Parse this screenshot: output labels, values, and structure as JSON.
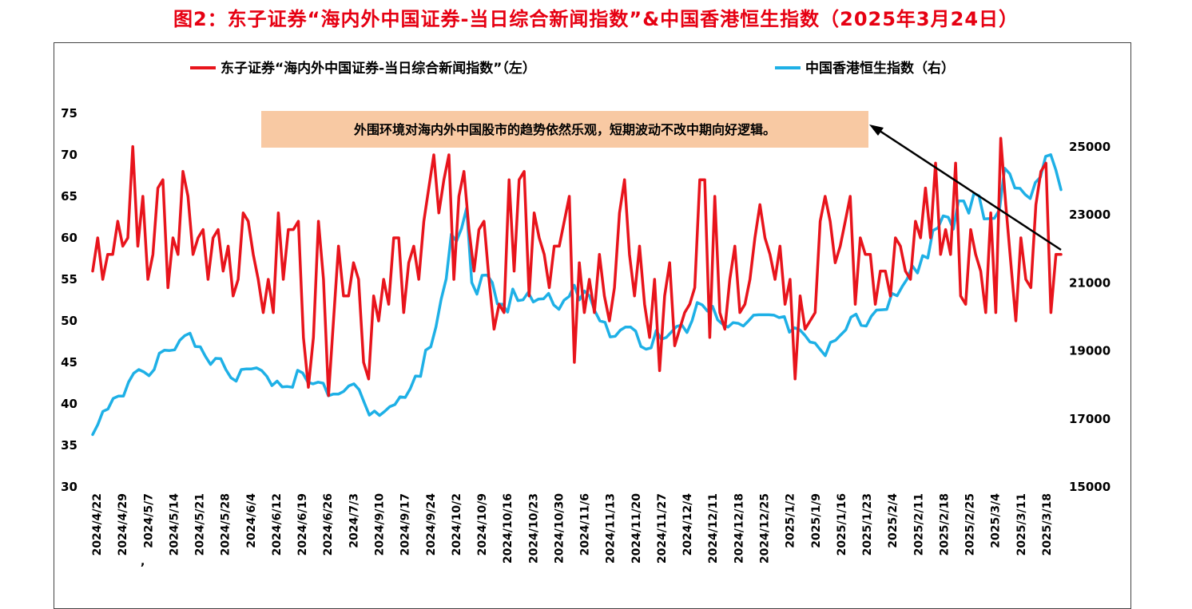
{
  "title": "图2：东子证券“海内外中国证券-当日综合新闻指数”&中国香港恒生指数（2025年3月24日）",
  "colors": {
    "title": "#e60012",
    "news": "#e8141c",
    "hsi": "#1eb0e6",
    "annotation_bg": "#f8c9a3"
  },
  "chart_data": {
    "type": "line",
    "legend_position": "top",
    "grid": false,
    "annotation": "外围环境对海内外中国股市的趋势依然乐观，短期波动不改中期向好逻辑。",
    "y_left": {
      "ticks": [
        30,
        35,
        40,
        45,
        50,
        55,
        60,
        65,
        70,
        75
      ],
      "range": [
        30,
        75
      ]
    },
    "y_right": {
      "ticks": [
        15000,
        17000,
        19000,
        21000,
        23000,
        25000
      ],
      "range": [
        15000,
        26000
      ]
    },
    "x_labels": [
      "2024/4/22",
      "2024/4/29",
      "2024/5/7",
      "2024/5/14",
      "2024/5/21",
      "2024/5/28",
      "2024/6/4",
      "2024/6/12",
      "2024/6/19",
      "2024/6/26",
      "2024/7/3",
      "2024/9/10",
      "2024/9/17",
      "2024/9/24",
      "2024/10/2",
      "2024/10/9",
      "2024/10/16",
      "2024/10/23",
      "2024/10/30",
      "2024/11/6",
      "2024/11/13",
      "2024/11/20",
      "2024/11/27",
      "2024/12/4",
      "2024/12/11",
      "2024/12/18",
      "2024/12/25",
      "2025/1/2",
      "2025/1/9",
      "2025/1/16",
      "2025/1/23",
      "2025/2/4",
      "2025/2/11",
      "2025/2/18",
      "2025/2/25",
      "2025/3/4",
      "2025/3/11",
      "2025/3/18"
    ],
    "stray_mark": ",",
    "series": [
      {
        "name": "东子证券“海内外中国证券-当日综合新闻指数”（左）",
        "axis": "left",
        "values": [
          56,
          60,
          55,
          58,
          58,
          62,
          59,
          60,
          71,
          59,
          65,
          55,
          58,
          66,
          67,
          54,
          60,
          58,
          68,
          65,
          58,
          60,
          61,
          55,
          60,
          61,
          56,
          59,
          53,
          55,
          63,
          62,
          58,
          55,
          51,
          55,
          51,
          63,
          55,
          61,
          61,
          62,
          48,
          42,
          48,
          62,
          55,
          41,
          50,
          59,
          53,
          53,
          57,
          55,
          45,
          43,
          53,
          50,
          55,
          52,
          60,
          60,
          51,
          57,
          59,
          55,
          62,
          66,
          70,
          63,
          67,
          70,
          55,
          65,
          68,
          61,
          56,
          61,
          62,
          55,
          49,
          52,
          51,
          67,
          56,
          67,
          68,
          53,
          63,
          60,
          58,
          54,
          59,
          59,
          62,
          65,
          45,
          57,
          51,
          55,
          51,
          58,
          53,
          50,
          54,
          63,
          67,
          58,
          53,
          59,
          52,
          48,
          55,
          44,
          53,
          57,
          47,
          49,
          51,
          52,
          54,
          67,
          67,
          48,
          65,
          51,
          49,
          55,
          59,
          51,
          52,
          55,
          60,
          64,
          60,
          58,
          55,
          59,
          52,
          55,
          43,
          53,
          49,
          50,
          51,
          62,
          65,
          62,
          57,
          59,
          62,
          65,
          52,
          60,
          58,
          58,
          52,
          56,
          56,
          53,
          60,
          59,
          56,
          55,
          62,
          60,
          66,
          60,
          69,
          58,
          61,
          58,
          69,
          53,
          52,
          61,
          58,
          56,
          51,
          63,
          51,
          72,
          64,
          57,
          50,
          60,
          55,
          54,
          64,
          68,
          69,
          51,
          58,
          58
        ]
      },
      {
        "name": "中国香港恒生指数（右）",
        "axis": "right",
        "values": [
          16540,
          16830,
          17220,
          17290,
          17600,
          17670,
          17670,
          18080,
          18340,
          18450,
          18380,
          18270,
          18450,
          18930,
          19020,
          19010,
          19030,
          19310,
          19450,
          19520,
          19130,
          19120,
          18840,
          18600,
          18780,
          18770,
          18450,
          18210,
          18110,
          18450,
          18470,
          18470,
          18500,
          18420,
          18250,
          17980,
          18110,
          17940,
          17950,
          17930,
          18430,
          18350,
          18080,
          18030,
          18080,
          18050,
          17680,
          17730,
          17730,
          17810,
          17970,
          18030,
          17860,
          17480,
          17110,
          17230,
          17100,
          17220,
          17360,
          17420,
          17650,
          17630,
          17890,
          18260,
          18250,
          19020,
          19120,
          19710,
          20510,
          21120,
          22430,
          22220,
          22600,
          23200,
          21010,
          20670,
          21220,
          21230,
          21010,
          20380,
          20370,
          20140,
          20820,
          20480,
          20500,
          20720,
          20440,
          20520,
          20530,
          20690,
          20350,
          20220,
          20490,
          20600,
          20930,
          20500,
          20760,
          20610,
          20180,
          19880,
          19840,
          19410,
          19430,
          19610,
          19700,
          19700,
          19580,
          19130,
          19050,
          19090,
          19600,
          19340,
          19400,
          19560,
          19720,
          19760,
          19540,
          19890,
          20420,
          20350,
          20170,
          20310,
          19910,
          19780,
          19700,
          19830,
          19810,
          19730,
          19880,
          20050,
          20060,
          20060,
          20060,
          20050,
          19980,
          20010,
          19550,
          19680,
          19620,
          19460,
          19260,
          19230,
          19040,
          18860,
          19250,
          19310,
          19470,
          19620,
          19990,
          20080,
          19750,
          19730,
          20020,
          20200,
          20210,
          20220,
          20690,
          20620,
          20890,
          21120,
          21500,
          21290,
          21800,
          21730,
          22540,
          22620,
          22970,
          22930,
          22580,
          23410,
          23410,
          23050,
          23630,
          23560,
          22880,
          22890,
          22900,
          23150,
          24370,
          24210,
          23790,
          23780,
          23600,
          23480,
          23950,
          24110,
          24720,
          24770,
          24320,
          23740
        ]
      }
    ]
  }
}
